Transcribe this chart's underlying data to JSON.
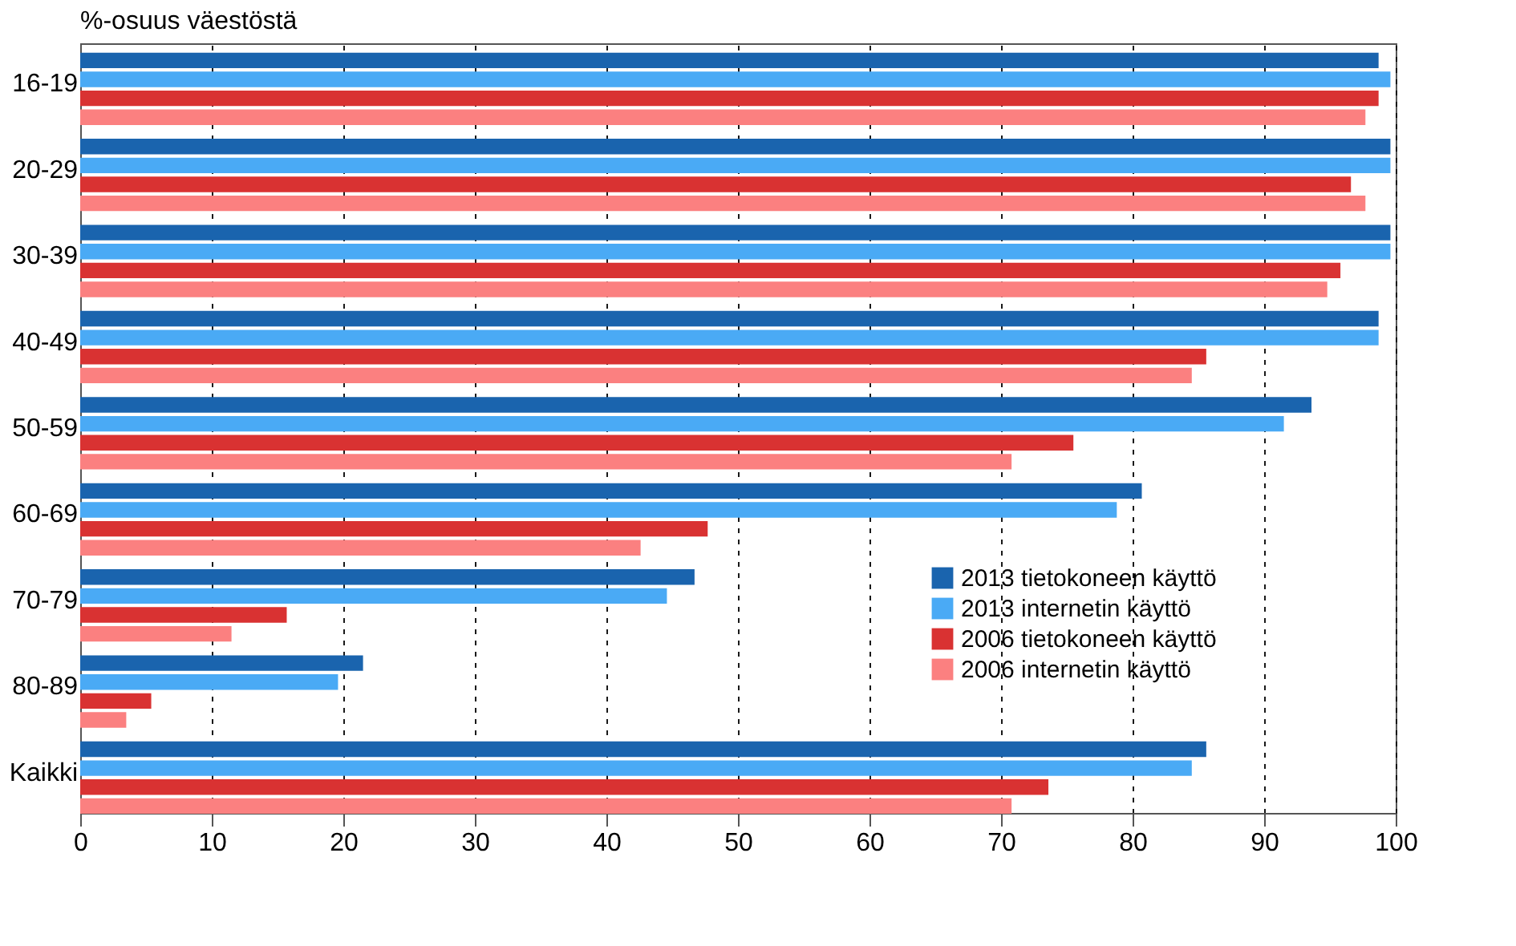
{
  "chart_data": {
    "type": "bar",
    "orientation": "horizontal",
    "title": "%-osuus väestöstä",
    "categories": [
      "16-19",
      "20-29",
      "30-39",
      "40-49",
      "50-59",
      "60-69",
      "70-79",
      "80-89",
      "Kaikki"
    ],
    "series": [
      {
        "name": "2013 tietokoneen käyttö",
        "color": "#1a64ae",
        "values": [
          98.7,
          99.6,
          99.6,
          98.7,
          93.6,
          80.7,
          46.7,
          21.5,
          85.6
        ]
      },
      {
        "name": "2013 internetin käyttö",
        "color": "#4aaaf5",
        "values": [
          99.6,
          99.6,
          99.6,
          98.7,
          91.5,
          78.8,
          44.6,
          19.6,
          84.5
        ]
      },
      {
        "name": "2006 tietokoneen käyttö",
        "color": "#d93232",
        "values": [
          98.7,
          96.6,
          95.8,
          85.6,
          75.5,
          47.7,
          15.7,
          5.4,
          73.6
        ]
      },
      {
        "name": "2006 internetin käyttö",
        "color": "#fb8080",
        "values": [
          97.7,
          97.7,
          94.8,
          84.5,
          70.8,
          42.6,
          11.5,
          3.5,
          70.8
        ]
      }
    ],
    "xlim": [
      0,
      100
    ],
    "xticks": [
      0,
      10,
      20,
      30,
      40,
      50,
      60,
      70,
      80,
      90,
      100
    ],
    "grid": "x",
    "legend": "right"
  }
}
